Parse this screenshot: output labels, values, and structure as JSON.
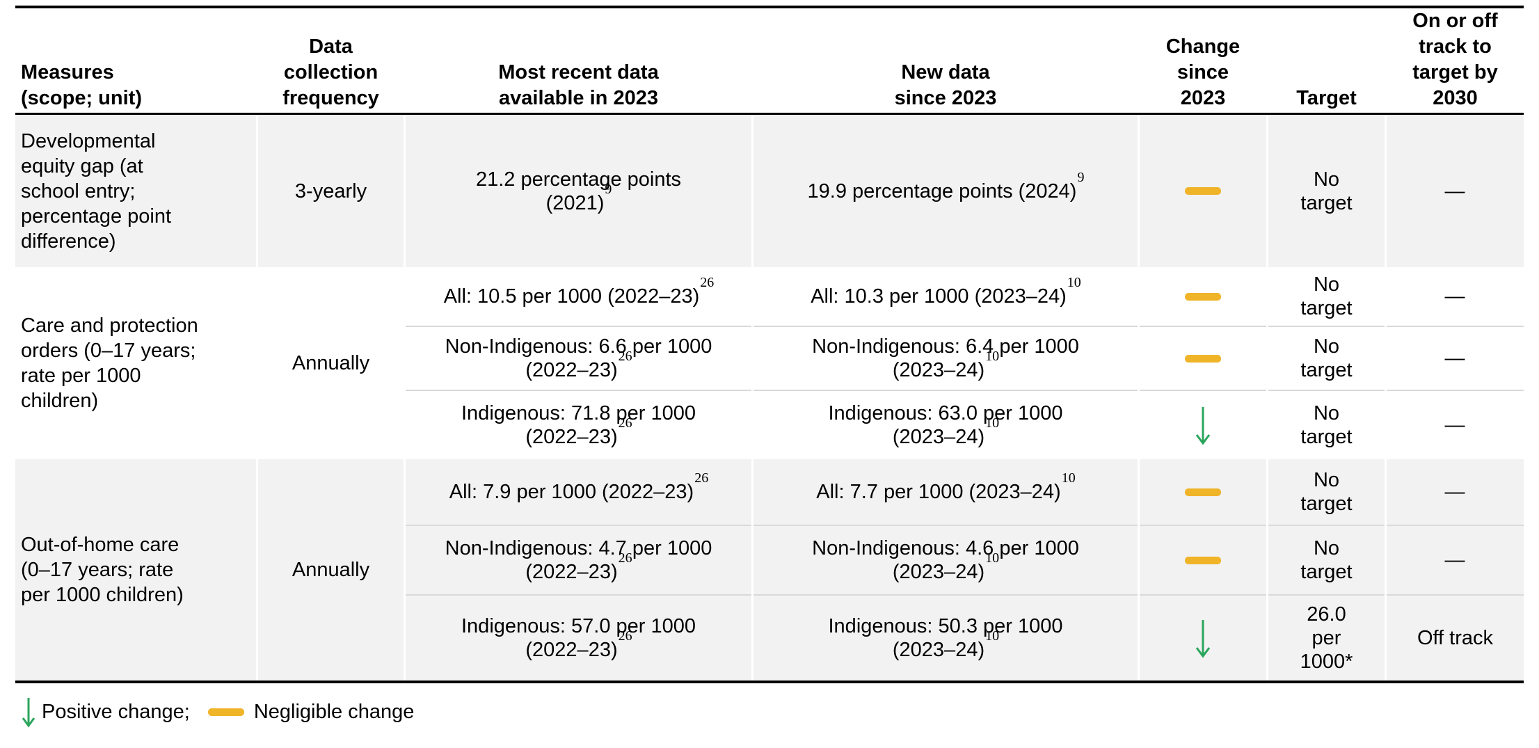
{
  "table": {
    "columns": [
      {
        "id": "measures",
        "align": "left",
        "lines": [
          "Measures",
          "(scope; unit)"
        ]
      },
      {
        "id": "frequency",
        "align": "center",
        "lines": [
          "Data",
          "collection",
          "frequency"
        ]
      },
      {
        "id": "recent",
        "align": "center",
        "lines": [
          "Most recent data",
          "available in 2023"
        ]
      },
      {
        "id": "new",
        "align": "center",
        "lines": [
          "New data",
          "since 2023"
        ]
      },
      {
        "id": "change",
        "align": "center",
        "lines": [
          "Change",
          "since",
          "2023"
        ]
      },
      {
        "id": "target",
        "align": "center",
        "lines": [
          "Target"
        ]
      },
      {
        "id": "track",
        "align": "center",
        "lines": [
          "On or off",
          "track to",
          "target by",
          "2030"
        ]
      }
    ],
    "groups": [
      {
        "measure_lines": [
          "Developmental",
          "equity gap (at",
          "school entry;",
          "percentage point",
          "difference)"
        ],
        "frequency": "3-yearly",
        "shaded": true,
        "rows": [
          {
            "recent": {
              "lines": [
                "21.2 percentage points",
                "(2021)"
              ],
              "sup": "9"
            },
            "new_data": {
              "lines": [
                "19.9 percentage points (2024)"
              ],
              "sup": "9"
            },
            "change": "negligible",
            "target": [
              "No",
              "target"
            ],
            "track": "—"
          }
        ]
      },
      {
        "measure_lines": [
          "Care and protection",
          "orders (0–17 years;",
          "rate per 1000",
          "children)"
        ],
        "frequency": "Annually",
        "shaded": false,
        "rows": [
          {
            "recent": {
              "lines": [
                "All: 10.5 per 1000 (2022–23)"
              ],
              "sup": "26"
            },
            "new_data": {
              "lines": [
                "All: 10.3 per 1000 (2023–24)"
              ],
              "sup": "10"
            },
            "change": "negligible",
            "target": [
              "No",
              "target"
            ],
            "track": "—"
          },
          {
            "recent": {
              "lines": [
                "Non-Indigenous: 6.6 per 1000",
                "(2022–23)"
              ],
              "sup": "26"
            },
            "new_data": {
              "lines": [
                "Non-Indigenous: 6.4 per 1000",
                "(2023–24)"
              ],
              "sup": "10"
            },
            "change": "negligible",
            "target": [
              "No",
              "target"
            ],
            "track": "—"
          },
          {
            "recent": {
              "lines": [
                "Indigenous: 71.8 per 1000",
                "(2022–23)"
              ],
              "sup": "26"
            },
            "new_data": {
              "lines": [
                "Indigenous: 63.0 per 1000",
                "(2023–24)"
              ],
              "sup": "10"
            },
            "change": "positive",
            "target": [
              "No",
              "target"
            ],
            "track": "—"
          }
        ]
      },
      {
        "measure_lines": [
          "Out-of-home care",
          "(0–17 years; rate",
          "per 1000 children)"
        ],
        "frequency": "Annually",
        "shaded": true,
        "rows": [
          {
            "recent": {
              "lines": [
                "All: 7.9 per 1000 (2022–23)"
              ],
              "sup": "26"
            },
            "new_data": {
              "lines": [
                "All: 7.7 per 1000 (2023–24)"
              ],
              "sup": "10"
            },
            "change": "negligible",
            "target": [
              "No",
              "target"
            ],
            "track": "—"
          },
          {
            "recent": {
              "lines": [
                "Non-Indigenous: 4.7 per 1000",
                "(2022–23)"
              ],
              "sup": "26"
            },
            "new_data": {
              "lines": [
                "Non-Indigenous: 4.6 per 1000",
                "(2023–24)"
              ],
              "sup": "10"
            },
            "change": "negligible",
            "target": [
              "No",
              "target"
            ],
            "track": "—"
          },
          {
            "recent": {
              "lines": [
                "Indigenous: 57.0 per 1000",
                "(2022–23)"
              ],
              "sup": "26"
            },
            "new_data": {
              "lines": [
                "Indigenous: 50.3 per 1000",
                "(2023–24)"
              ],
              "sup": "10"
            },
            "change": "positive",
            "target": [
              "26.0",
              "per",
              "1000*"
            ],
            "track": "Off track"
          }
        ]
      }
    ]
  },
  "change_icons": {
    "negligible": "dash-icon",
    "positive": "down-arrow-icon"
  },
  "legend": {
    "items": [
      {
        "icon": "down-arrow-icon",
        "label": "Positive change;"
      },
      {
        "icon": "dash-icon",
        "label": "Negligible change"
      }
    ]
  },
  "colors": {
    "positive_change": "#2BA55C",
    "negligible_change": "#F0B429",
    "row_shade": "#F2F2F2",
    "divider": "#D9D9D9",
    "rule": "#000000",
    "text": "#000000"
  }
}
